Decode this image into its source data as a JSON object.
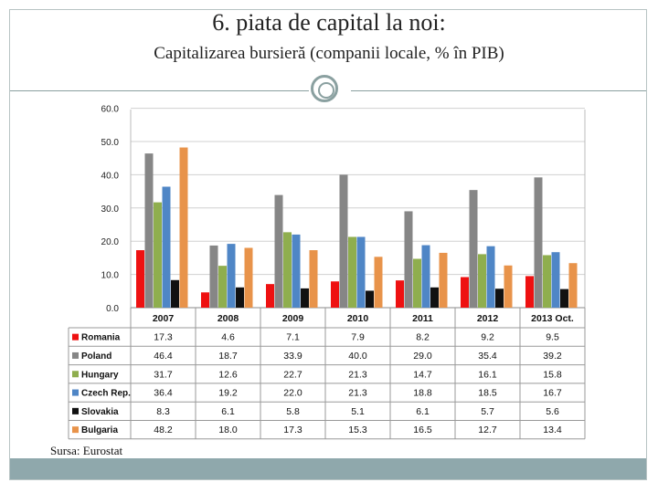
{
  "header": {
    "title": "6. piata de capital la noi:",
    "subtitle": "Capitalizarea bursieră (companii locale, % în PIB)"
  },
  "footer": {
    "source": "Sursa: Eurostat"
  },
  "chart_data": {
    "type": "bar",
    "title": "",
    "xlabel": "",
    "ylabel": "",
    "categories": [
      "2007",
      "2008",
      "2009",
      "2010",
      "2011",
      "2012",
      "2013 Oct."
    ],
    "ylim": [
      0,
      60
    ],
    "yticks": [
      "0.0",
      "10.0",
      "20.0",
      "30.0",
      "40.0",
      "50.0",
      "60.0"
    ],
    "grid": true,
    "legend": "data-table-left",
    "series": [
      {
        "name": "Romania",
        "color": "#ee1111",
        "values": [
          17.3,
          4.6,
          7.1,
          7.9,
          8.2,
          9.2,
          9.5
        ],
        "labels": [
          "17.3",
          "4.6",
          "7.1",
          "7.9",
          "8.2",
          "9.2",
          "9.5"
        ]
      },
      {
        "name": "Poland",
        "color": "#868686",
        "values": [
          46.4,
          18.7,
          33.9,
          40.0,
          29.0,
          35.4,
          39.2
        ],
        "labels": [
          "46.4",
          "18.7",
          "33.9",
          "40.0",
          "29.0",
          "35.4",
          "39.2"
        ]
      },
      {
        "name": "Hungary",
        "color": "#8fae4e",
        "values": [
          31.7,
          12.6,
          22.7,
          21.3,
          14.7,
          16.1,
          15.8
        ],
        "labels": [
          "31.7",
          "12.6",
          "22.7",
          "21.3",
          "14.7",
          "16.1",
          "15.8"
        ]
      },
      {
        "name": "Czech Rep.",
        "color": "#4f86c6",
        "values": [
          36.4,
          19.2,
          22.0,
          21.3,
          18.8,
          18.5,
          16.7
        ],
        "labels": [
          "36.4",
          "19.2",
          "22.0",
          "21.3",
          "18.8",
          "18.5",
          "16.7"
        ]
      },
      {
        "name": "Slovakia",
        "color": "#111111",
        "values": [
          8.3,
          6.1,
          5.8,
          5.1,
          6.1,
          5.7,
          5.6
        ],
        "labels": [
          "8.3",
          "6.1",
          "5.8",
          "5.1",
          "6.1",
          "5.7",
          "5.6"
        ]
      },
      {
        "name": "Bulgaria",
        "color": "#e8934a",
        "values": [
          48.2,
          18.0,
          17.3,
          15.3,
          16.5,
          12.7,
          13.4
        ],
        "labels": [
          "48.2",
          "18.0",
          "17.3",
          "15.3",
          "16.5",
          "12.7",
          "13.4"
        ]
      }
    ]
  }
}
